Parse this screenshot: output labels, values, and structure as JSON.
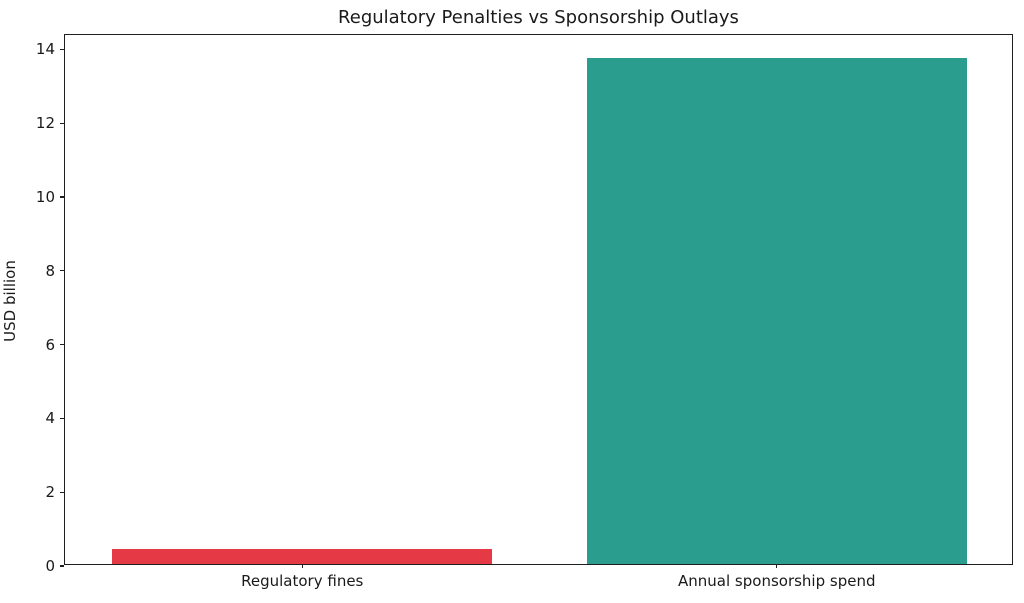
{
  "chart_data": {
    "type": "bar",
    "title": "Regulatory Penalties vs Sponsorship Outlays",
    "xlabel": "",
    "ylabel": "USD billion",
    "categories": [
      "Regulatory fines",
      "Annual sponsorship spend"
    ],
    "values": [
      0.4,
      13.7
    ],
    "bar_colors": [
      "#e63946",
      "#2a9d8f"
    ],
    "yticks": [
      0,
      2,
      4,
      6,
      8,
      10,
      12,
      14
    ],
    "ylim": [
      0,
      14.39
    ],
    "grid": false,
    "legend_position": "none",
    "bar_width_fraction": 0.8
  }
}
